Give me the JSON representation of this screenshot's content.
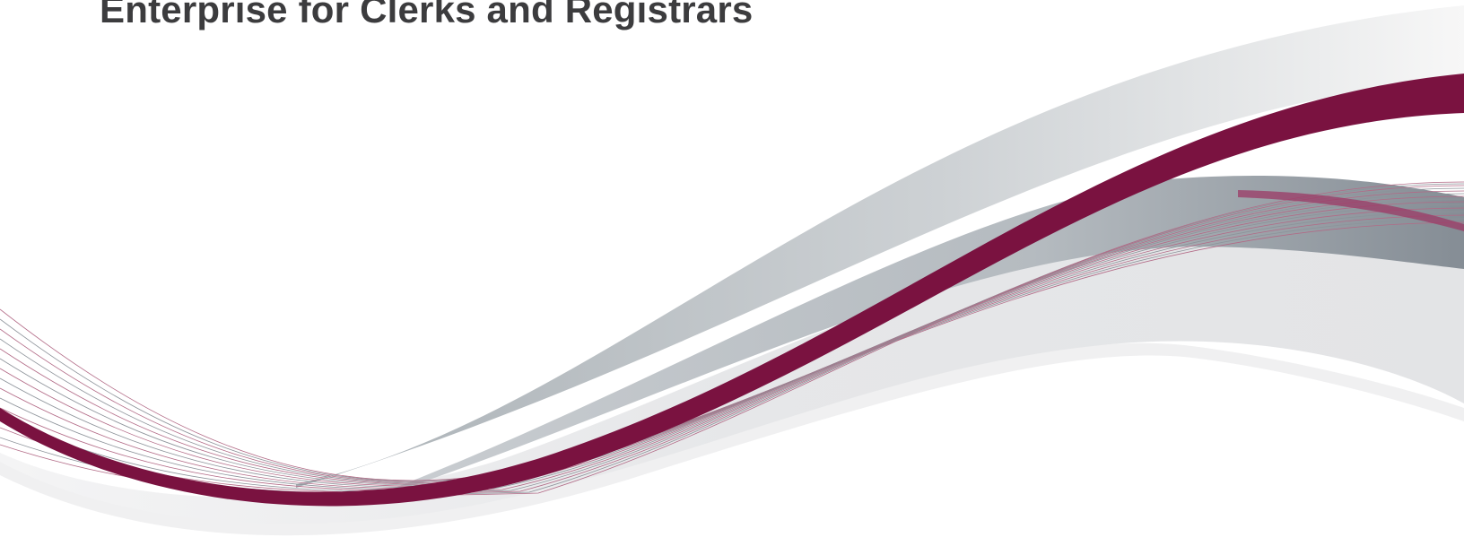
{
  "document": {
    "title": "Enterprise for Clerks and Registrars"
  },
  "colors": {
    "accent": "#7a1240",
    "heading": "#3c3c3e",
    "ribbon_grey": "#9aa1a7",
    "band_light": "#e5e6e8"
  }
}
